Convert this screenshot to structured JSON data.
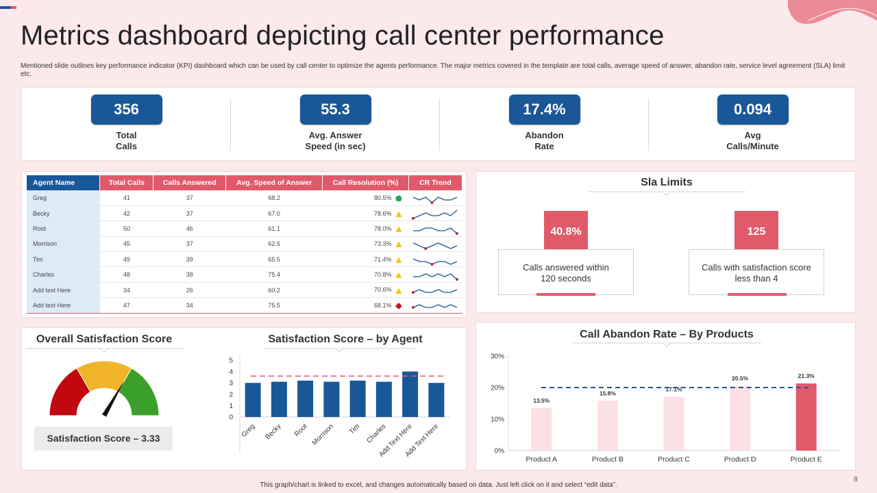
{
  "page": {
    "title": "Metrics dashboard depicting call center performance",
    "description": "Mentioned slide outlines key performance indicator (KPI) dashboard which can be used by call center to optimize the agents performance. The major metrics covered in the template are total calls, average speed of answer, abandon rate, service level agreement (SLA) limit etc.",
    "footer_note": "This graph/chart is linked to excel, and changes automatically based on data. Just left click on it and select “edit data”.",
    "page_number": "8"
  },
  "colors": {
    "primary_blue": "#1a5799",
    "accent_red": "#e05a6a",
    "light_pink": "#fbe0e4",
    "green": "#1faa4a",
    "yellow": "#f5c518",
    "dark_red": "#c0151f",
    "gauge_red": "#c0080e",
    "gauge_yellow": "#f0b428",
    "gauge_green": "#3aa02a"
  },
  "kpis": [
    {
      "value": "356",
      "label_line1": "Total",
      "label_line2": "Calls"
    },
    {
      "value": "55.3",
      "label_line1": "Avg. Answer",
      "label_line2": "Speed (in sec)"
    },
    {
      "value": "17.4%",
      "label_line1": "Abandon",
      "label_line2": "Rate"
    },
    {
      "value": "0.094",
      "label_line1": "Avg",
      "label_line2": "Calls/Minute"
    }
  ],
  "agent_table": {
    "headers": [
      "Agent Name",
      "Total Calls",
      "Calls Answered",
      "Avg. Speed of Answer",
      "Call Resolution (%)",
      "CR Trend"
    ],
    "rows": [
      {
        "name": "Greg",
        "total": "41",
        "answered": "37",
        "speed": "68.2",
        "resolution": "80.5%",
        "status": "green-circle-icon",
        "trend": [
          3,
          2,
          3,
          1,
          3,
          2,
          2,
          3
        ]
      },
      {
        "name": "Becky",
        "total": "42",
        "answered": "37",
        "speed": "67.0",
        "resolution": "78.6%",
        "status": "yellow-triangle-icon",
        "trend": [
          1,
          2,
          3,
          2,
          2,
          3,
          2,
          4
        ]
      },
      {
        "name": "Root",
        "total": "50",
        "answered": "46",
        "speed": "61.1",
        "resolution": "78.0%",
        "status": "yellow-triangle-icon",
        "trend": [
          2,
          2,
          3,
          3,
          2,
          2,
          3,
          1
        ]
      },
      {
        "name": "Morrison",
        "total": "45",
        "answered": "37",
        "speed": "62.5",
        "resolution": "73.3%",
        "status": "yellow-triangle-icon",
        "trend": [
          3,
          2,
          1,
          2,
          3,
          2,
          1,
          2
        ]
      },
      {
        "name": "Tim",
        "total": "49",
        "answered": "39",
        "speed": "65.5",
        "resolution": "71.4%",
        "status": "yellow-triangle-icon",
        "trend": [
          3,
          2,
          2,
          1,
          2,
          2,
          1,
          2
        ]
      },
      {
        "name": "Charles",
        "total": "48",
        "answered": "38",
        "speed": "75.4",
        "resolution": "70.8%",
        "status": "yellow-triangle-icon",
        "trend": [
          2,
          2,
          3,
          2,
          3,
          2,
          3,
          1
        ]
      },
      {
        "name": "Add text Here",
        "total": "34",
        "answered": "26",
        "speed": "60.2",
        "resolution": "70.6%",
        "status": "yellow-triangle-icon",
        "trend": [
          2,
          3,
          2,
          2,
          3,
          2,
          2,
          3
        ]
      },
      {
        "name": "Add text Here",
        "total": "47",
        "answered": "34",
        "speed": "75.5",
        "resolution": "68.1%",
        "status": "red-diamond-icon",
        "trend": [
          2,
          3,
          2,
          2,
          3,
          2,
          3,
          2
        ]
      }
    ]
  },
  "sla": {
    "title": "Sla Limits",
    "items": [
      {
        "value": "40.8%",
        "line1": "Calls answered within",
        "line2": "120 seconds"
      },
      {
        "value": "125",
        "line1": "Calls with satisfaction score",
        "line2": "less than 4"
      }
    ]
  },
  "satisfaction": {
    "overall_title": "Overall  Satisfaction  Score",
    "score_label": "Satisfaction  Score – 3.33",
    "agent_title": "Satisfaction  Score – by Agent"
  },
  "abandon": {
    "title": "Call Abandon Rate – By Products"
  },
  "chart_data": [
    {
      "type": "gauge",
      "title": "Overall Satisfaction Score",
      "value": 3.33,
      "min": 0,
      "max": 5,
      "bands": [
        "red",
        "yellow",
        "green"
      ]
    },
    {
      "type": "bar",
      "title": "Satisfaction Score – by Agent",
      "categories": [
        "Greg",
        "Becky",
        "Root",
        "Morrison",
        "Tim",
        "Charles",
        "Add Text Here",
        "Add Text Here"
      ],
      "values": [
        3.0,
        3.1,
        3.2,
        3.1,
        3.2,
        3.1,
        4.0,
        3.0
      ],
      "target": 3.6,
      "ylim": [
        0,
        5
      ],
      "yticks": [
        "0",
        "1",
        "2",
        "3",
        "4",
        "5"
      ]
    },
    {
      "type": "bar",
      "title": "Call Abandon Rate – By Products",
      "categories": [
        "Product A",
        "Product B",
        "Product C",
        "Product D",
        "Product E"
      ],
      "values": [
        13.5,
        15.8,
        17.1,
        20.5,
        21.3
      ],
      "data_labels": [
        "13.5%",
        "15.8%",
        "17.1%",
        "20.5%",
        "21.3%"
      ],
      "target": 20,
      "ylim": [
        0,
        30
      ],
      "yticks": [
        "0%",
        "10%",
        "20%",
        "30%"
      ]
    }
  ]
}
